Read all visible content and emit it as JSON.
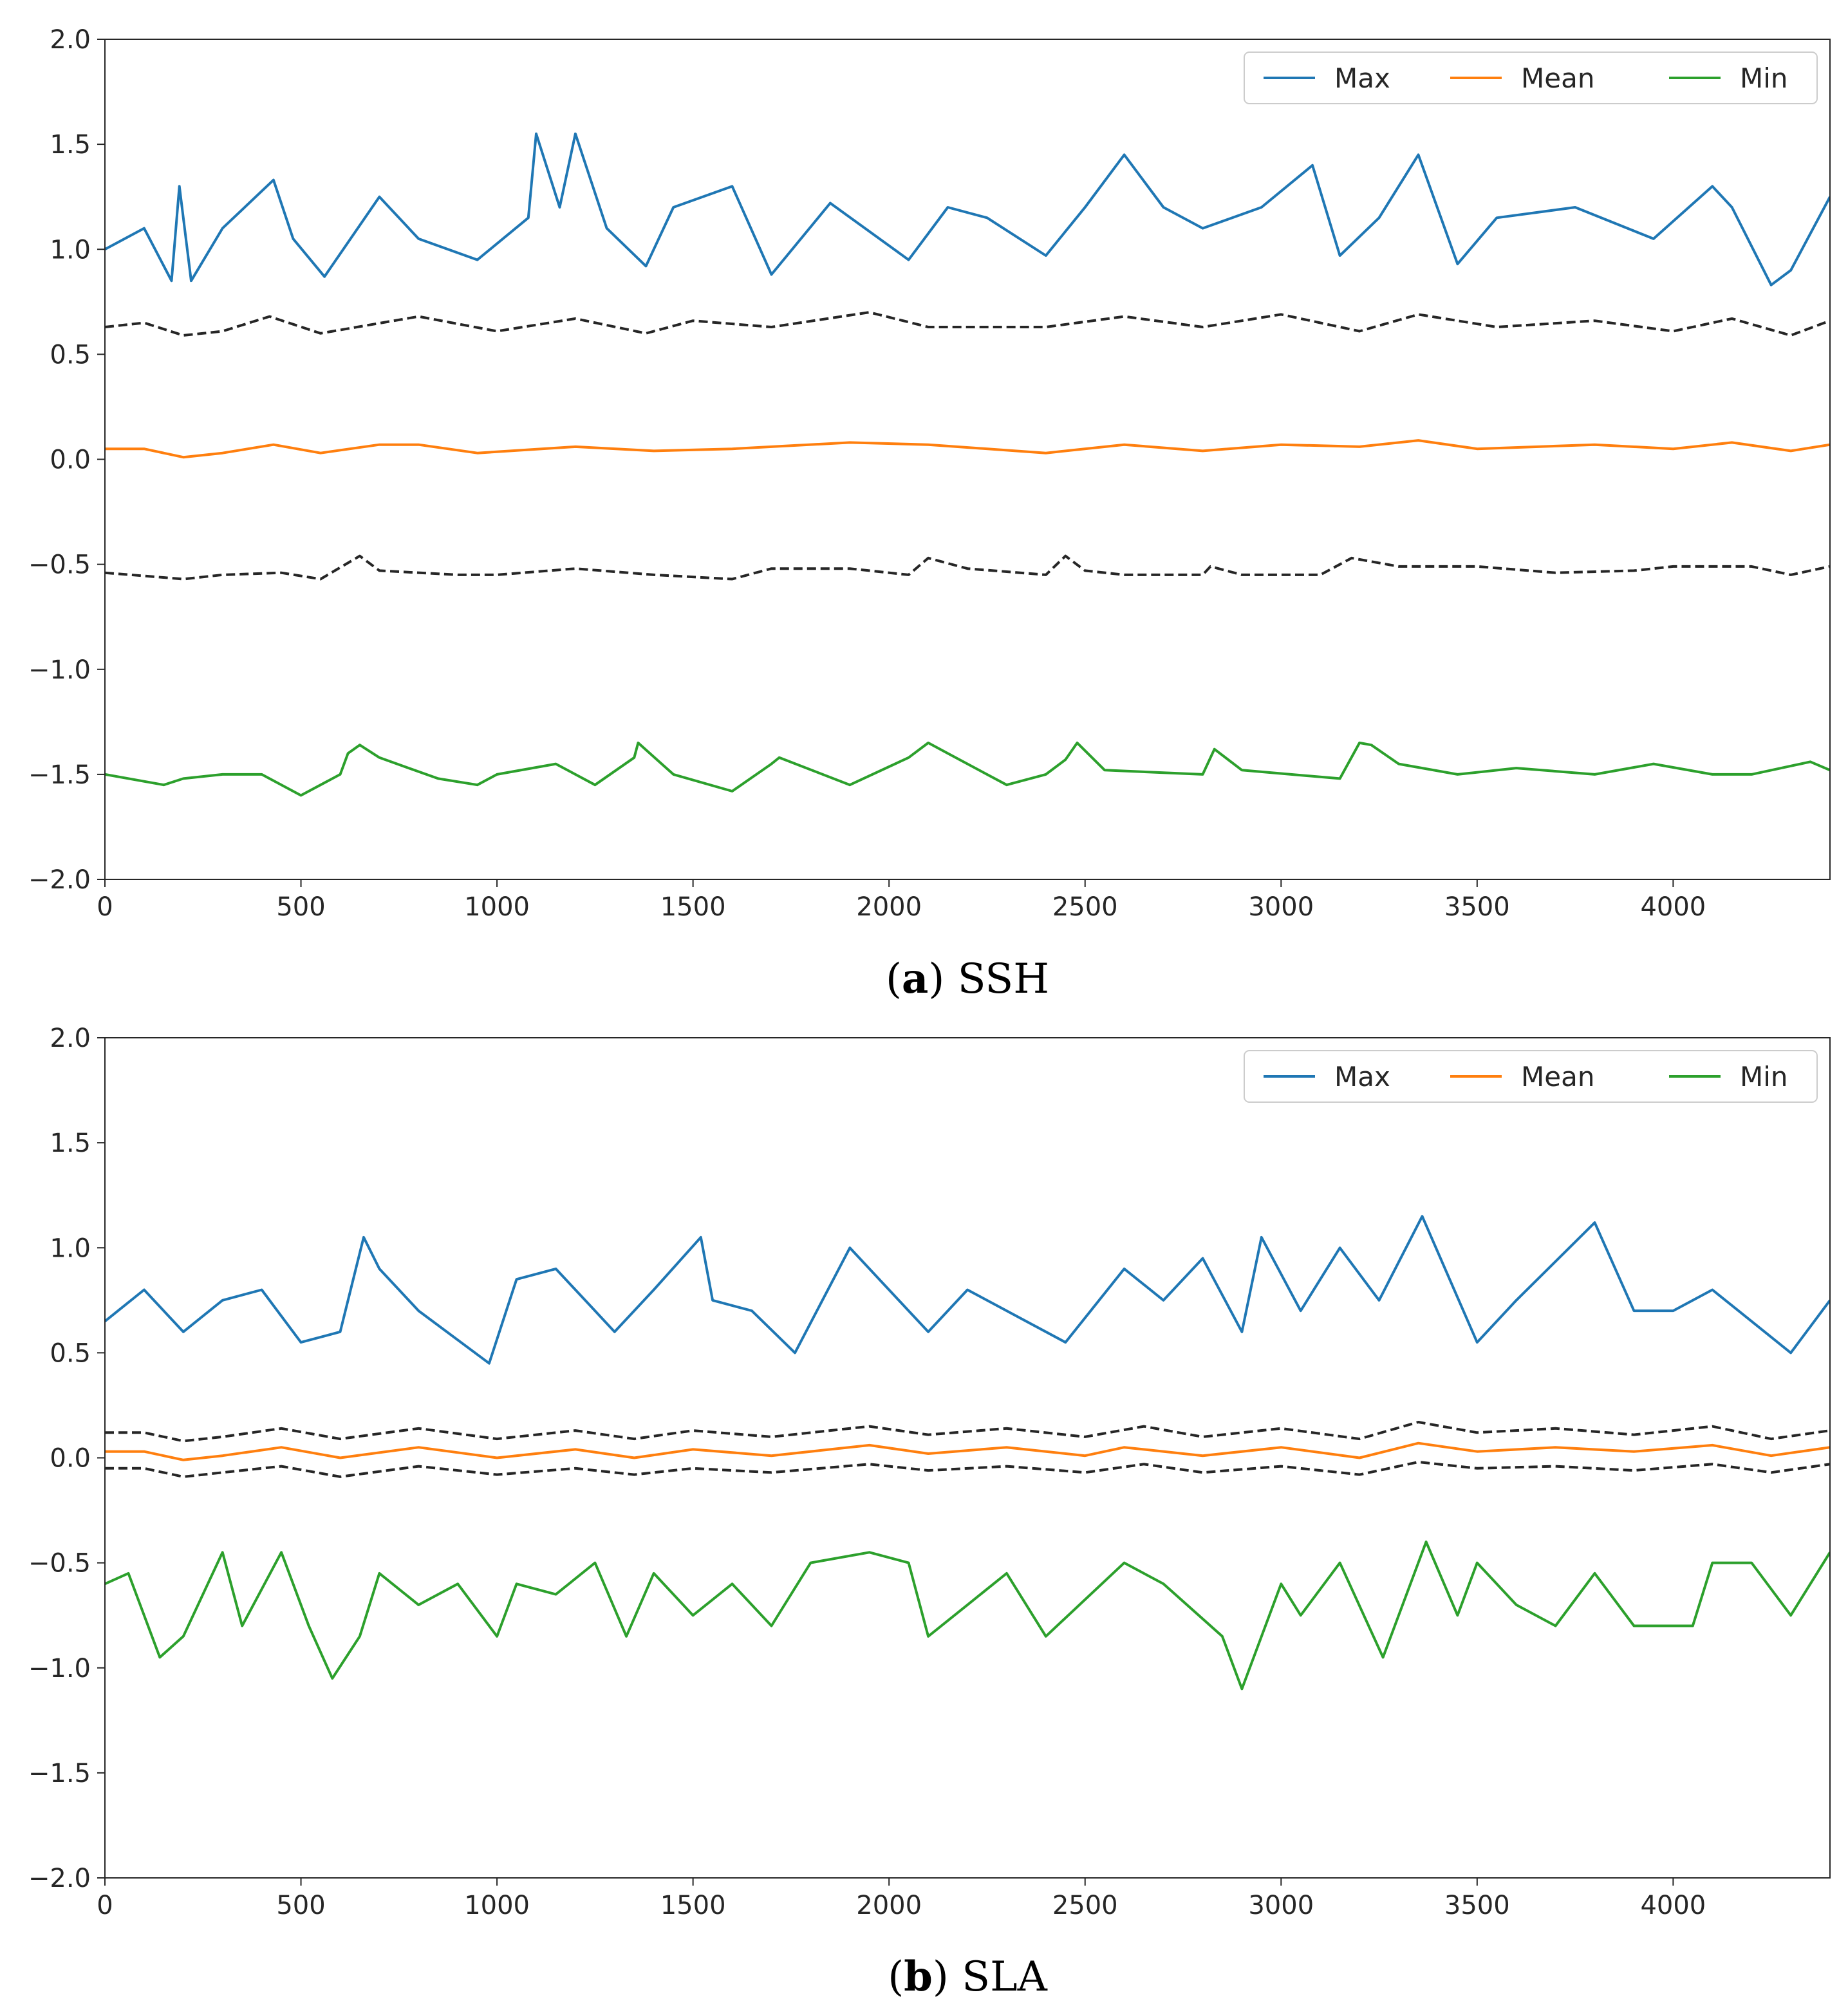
{
  "chart_data": [
    {
      "type": "line",
      "panel_label": "a",
      "caption_open": "(",
      "caption_close": ")",
      "caption_text": "SSH",
      "xlim": [
        0,
        4400
      ],
      "ylim": [
        -2.0,
        2.0
      ],
      "xticks": [
        "0",
        "500",
        "1000",
        "1500",
        "2000",
        "2500",
        "3000",
        "3500",
        "4000"
      ],
      "yticks": [
        "2.0",
        "1.5",
        "1.0",
        "0.5",
        "0.0",
        "−0.5",
        "−1.0",
        "−1.5",
        "−2.0"
      ],
      "legend": {
        "location": "top-right",
        "entries": [
          "Max",
          "Mean",
          "Min"
        ]
      },
      "series": [
        {
          "name": "Max",
          "color": "#1f77b4",
          "style": "solid",
          "x": [
            0,
            100,
            170,
            190,
            220,
            300,
            430,
            480,
            560,
            700,
            800,
            950,
            1080,
            1100,
            1160,
            1200,
            1280,
            1380,
            1450,
            1600,
            1700,
            1850,
            2050,
            2150,
            2250,
            2400,
            2500,
            2600,
            2700,
            2800,
            2950,
            3080,
            3150,
            3250,
            3350,
            3450,
            3550,
            3750,
            3950,
            4100,
            4150,
            4250,
            4300,
            4400
          ],
          "values": [
            1.0,
            1.1,
            0.85,
            1.3,
            0.85,
            1.1,
            1.33,
            1.05,
            0.87,
            1.25,
            1.05,
            0.95,
            1.15,
            1.55,
            1.2,
            1.55,
            1.1,
            0.92,
            1.2,
            1.3,
            0.88,
            1.22,
            0.95,
            1.2,
            1.15,
            0.97,
            1.2,
            1.45,
            1.2,
            1.1,
            1.2,
            1.4,
            0.97,
            1.15,
            1.45,
            0.93,
            1.15,
            1.2,
            1.05,
            1.3,
            1.2,
            0.83,
            0.9,
            1.25
          ]
        },
        {
          "name": "Mean",
          "color": "#ff7f0e",
          "style": "solid",
          "x": [
            0,
            100,
            200,
            300,
            430,
            550,
            700,
            800,
            950,
            1200,
            1400,
            1600,
            1900,
            2100,
            2400,
            2600,
            2800,
            3000,
            3200,
            3350,
            3500,
            3800,
            4000,
            4150,
            4300,
            4400
          ],
          "values": [
            0.05,
            0.05,
            0.01,
            0.03,
            0.07,
            0.03,
            0.07,
            0.07,
            0.03,
            0.06,
            0.04,
            0.05,
            0.08,
            0.07,
            0.03,
            0.07,
            0.04,
            0.07,
            0.06,
            0.09,
            0.05,
            0.07,
            0.05,
            0.08,
            0.04,
            0.07
          ]
        },
        {
          "name": "Upper band",
          "color": "#262626",
          "style": "dashed",
          "x": [
            0,
            100,
            200,
            300,
            420,
            550,
            800,
            1000,
            1200,
            1380,
            1500,
            1700,
            1950,
            2100,
            2400,
            2600,
            2800,
            3000,
            3200,
            3350,
            3550,
            3800,
            4000,
            4150,
            4300,
            4400
          ],
          "values": [
            0.63,
            0.65,
            0.59,
            0.61,
            0.68,
            0.6,
            0.68,
            0.61,
            0.67,
            0.6,
            0.66,
            0.63,
            0.7,
            0.63,
            0.63,
            0.68,
            0.63,
            0.69,
            0.61,
            0.69,
            0.63,
            0.66,
            0.61,
            0.67,
            0.59,
            0.66
          ]
        },
        {
          "name": "Lower band",
          "color": "#262626",
          "style": "dashed",
          "x": [
            0,
            200,
            300,
            450,
            550,
            650,
            700,
            900,
            1000,
            1200,
            1400,
            1600,
            1700,
            1900,
            2050,
            2100,
            2200,
            2400,
            2450,
            2500,
            2600,
            2800,
            2820,
            2900,
            3100,
            3180,
            3300,
            3500,
            3700,
            3900,
            4000,
            4200,
            4300,
            4400
          ],
          "values": [
            -0.54,
            -0.57,
            -0.55,
            -0.54,
            -0.57,
            -0.46,
            -0.53,
            -0.55,
            -0.55,
            -0.52,
            -0.55,
            -0.57,
            -0.52,
            -0.52,
            -0.55,
            -0.47,
            -0.52,
            -0.55,
            -0.46,
            -0.53,
            -0.55,
            -0.55,
            -0.51,
            -0.55,
            -0.55,
            -0.47,
            -0.51,
            -0.51,
            -0.54,
            -0.53,
            -0.51,
            -0.51,
            -0.55,
            -0.51
          ]
        },
        {
          "name": "Min",
          "color": "#2ca02c",
          "style": "solid",
          "x": [
            0,
            150,
            200,
            300,
            400,
            500,
            600,
            620,
            650,
            700,
            850,
            950,
            1000,
            1150,
            1250,
            1350,
            1360,
            1450,
            1600,
            1700,
            1720,
            1900,
            2050,
            2100,
            2150,
            2300,
            2400,
            2450,
            2480,
            2550,
            2800,
            2830,
            2900,
            3150,
            3200,
            3230,
            3300,
            3450,
            3600,
            3800,
            3950,
            4100,
            4200,
            4350,
            4400
          ],
          "values": [
            -1.5,
            -1.55,
            -1.52,
            -1.5,
            -1.5,
            -1.6,
            -1.5,
            -1.4,
            -1.36,
            -1.42,
            -1.52,
            -1.55,
            -1.5,
            -1.45,
            -1.55,
            -1.42,
            -1.35,
            -1.5,
            -1.58,
            -1.45,
            -1.42,
            -1.55,
            -1.42,
            -1.35,
            -1.4,
            -1.55,
            -1.5,
            -1.43,
            -1.35,
            -1.48,
            -1.5,
            -1.38,
            -1.48,
            -1.52,
            -1.35,
            -1.36,
            -1.45,
            -1.5,
            -1.47,
            -1.5,
            -1.45,
            -1.5,
            -1.5,
            -1.44,
            -1.48
          ]
        }
      ]
    },
    {
      "type": "line",
      "panel_label": "b",
      "caption_open": "(",
      "caption_close": ")",
      "caption_text": "SLA",
      "xlim": [
        0,
        4400
      ],
      "ylim": [
        -2.0,
        2.0
      ],
      "xticks": [
        "0",
        "500",
        "1000",
        "1500",
        "2000",
        "2500",
        "3000",
        "3500",
        "4000"
      ],
      "yticks": [
        "2.0",
        "1.5",
        "1.0",
        "0.5",
        "0.0",
        "−0.5",
        "−1.0",
        "−1.5",
        "−2.0"
      ],
      "legend": {
        "location": "top-right",
        "entries": [
          "Max",
          "Mean",
          "Min"
        ]
      },
      "series": [
        {
          "name": "Max",
          "color": "#1f77b4",
          "style": "solid",
          "x": [
            0,
            100,
            200,
            300,
            400,
            500,
            600,
            660,
            700,
            800,
            980,
            1050,
            1150,
            1250,
            1300,
            1400,
            1520,
            1550,
            1650,
            1760,
            1900,
            2100,
            2200,
            2300,
            2450,
            2600,
            2700,
            2800,
            2900,
            2950,
            3050,
            3150,
            3250,
            3360,
            3500,
            3600,
            3800,
            3900,
            4000,
            4100,
            4200,
            4300,
            4400
          ],
          "values": [
            0.65,
            0.8,
            0.6,
            0.75,
            0.8,
            0.55,
            0.6,
            1.05,
            0.9,
            0.7,
            0.45,
            0.85,
            0.9,
            0.7,
            0.6,
            0.8,
            1.05,
            0.75,
            0.7,
            0.5,
            1.0,
            0.6,
            0.8,
            0.7,
            0.55,
            0.9,
            0.75,
            0.95,
            0.6,
            1.05,
            0.7,
            1.0,
            0.75,
            1.15,
            0.55,
            0.75,
            1.12,
            0.7,
            0.7,
            0.8,
            0.65,
            0.5,
            0.75
          ]
        },
        {
          "name": "Mean",
          "color": "#ff7f0e",
          "style": "solid",
          "x": [
            0,
            100,
            200,
            300,
            450,
            600,
            800,
            1000,
            1200,
            1350,
            1500,
            1700,
            1950,
            2100,
            2300,
            2500,
            2600,
            2800,
            3000,
            3200,
            3350,
            3500,
            3700,
            3900,
            4100,
            4250,
            4400
          ],
          "values": [
            0.03,
            0.03,
            -0.01,
            0.01,
            0.05,
            0.0,
            0.05,
            0.0,
            0.04,
            0.0,
            0.04,
            0.01,
            0.06,
            0.02,
            0.05,
            0.01,
            0.05,
            0.01,
            0.05,
            0.0,
            0.07,
            0.03,
            0.05,
            0.03,
            0.06,
            0.01,
            0.05
          ]
        },
        {
          "name": "Upper band",
          "color": "#262626",
          "style": "dashed",
          "x": [
            0,
            100,
            200,
            300,
            450,
            600,
            800,
            1000,
            1200,
            1350,
            1500,
            1700,
            1950,
            2100,
            2300,
            2500,
            2650,
            2800,
            3000,
            3200,
            3350,
            3500,
            3700,
            3900,
            4100,
            4250,
            4400
          ],
          "values": [
            0.12,
            0.12,
            0.08,
            0.1,
            0.14,
            0.09,
            0.14,
            0.09,
            0.13,
            0.09,
            0.13,
            0.1,
            0.15,
            0.11,
            0.14,
            0.1,
            0.15,
            0.1,
            0.14,
            0.09,
            0.17,
            0.12,
            0.14,
            0.11,
            0.15,
            0.09,
            0.13
          ]
        },
        {
          "name": "Lower band",
          "color": "#262626",
          "style": "dashed",
          "x": [
            0,
            100,
            200,
            300,
            450,
            600,
            800,
            1000,
            1200,
            1350,
            1500,
            1700,
            1950,
            2100,
            2300,
            2500,
            2650,
            2800,
            3000,
            3200,
            3350,
            3500,
            3700,
            3900,
            4100,
            4250,
            4400
          ],
          "values": [
            -0.05,
            -0.05,
            -0.09,
            -0.07,
            -0.04,
            -0.09,
            -0.04,
            -0.08,
            -0.05,
            -0.08,
            -0.05,
            -0.07,
            -0.03,
            -0.06,
            -0.04,
            -0.07,
            -0.03,
            -0.07,
            -0.04,
            -0.08,
            -0.02,
            -0.05,
            -0.04,
            -0.06,
            -0.03,
            -0.07,
            -0.03
          ]
        },
        {
          "name": "Min",
          "color": "#2ca02c",
          "style": "solid",
          "x": [
            0,
            60,
            140,
            200,
            300,
            350,
            450,
            520,
            580,
            650,
            700,
            800,
            900,
            1000,
            1050,
            1150,
            1250,
            1330,
            1400,
            1500,
            1600,
            1700,
            1800,
            1950,
            2050,
            2100,
            2200,
            2300,
            2400,
            2600,
            2700,
            2850,
            2900,
            3000,
            3050,
            3150,
            3260,
            3370,
            3450,
            3500,
            3600,
            3700,
            3800,
            3900,
            4050,
            4100,
            4200,
            4300,
            4400
          ],
          "values": [
            -0.6,
            -0.55,
            -0.95,
            -0.85,
            -0.45,
            -0.8,
            -0.45,
            -0.8,
            -1.05,
            -0.85,
            -0.55,
            -0.7,
            -0.6,
            -0.85,
            -0.6,
            -0.65,
            -0.5,
            -0.85,
            -0.55,
            -0.75,
            -0.6,
            -0.8,
            -0.5,
            -0.45,
            -0.5,
            -0.85,
            -0.7,
            -0.55,
            -0.85,
            -0.5,
            -0.6,
            -0.85,
            -1.1,
            -0.6,
            -0.75,
            -0.5,
            -0.95,
            -0.4,
            -0.75,
            -0.5,
            -0.7,
            -0.8,
            -0.55,
            -0.8,
            -0.8,
            -0.5,
            -0.5,
            -0.75,
            -0.45
          ]
        }
      ]
    }
  ]
}
